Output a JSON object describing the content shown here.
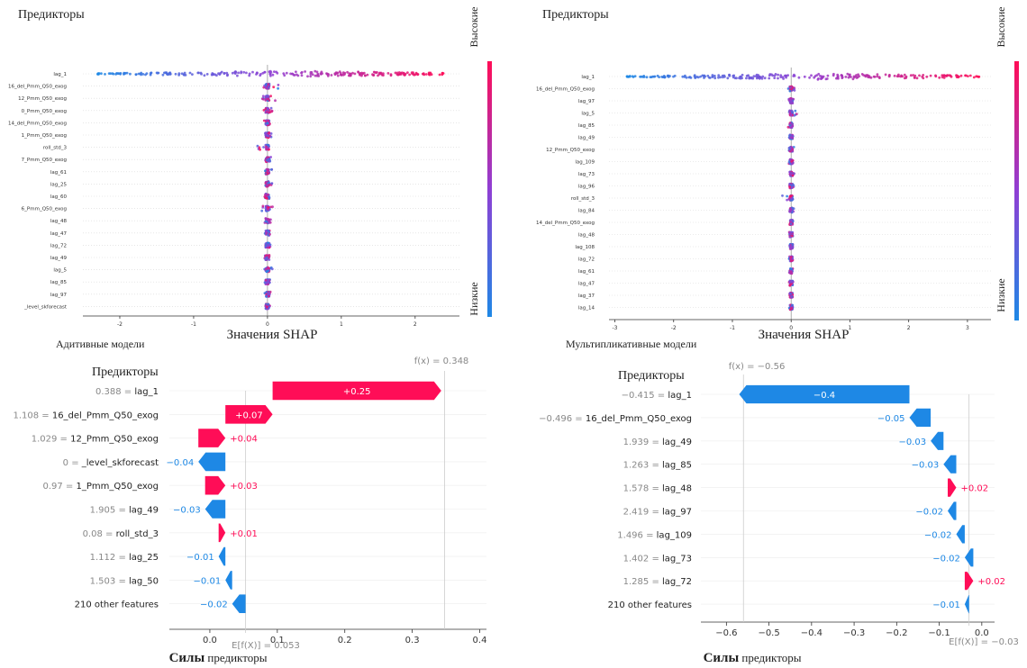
{
  "colors": {
    "pos": "#ff0d57",
    "neg": "#1e88e5",
    "violet": "#8f3fd4",
    "grid": "#e6e6e6",
    "axis": "#333333",
    "label_gray": "#888888"
  },
  "chart_data": [
    {
      "id": "beeswarm_additive",
      "type": "scatter",
      "subtype": "shap_beeswarm",
      "title": "Предикторы",
      "xlabel": "Значения SHAP",
      "colorbar": {
        "high": "Высокие",
        "low": "Низкие"
      },
      "xlim": [
        -2.5,
        2.6
      ],
      "xticks": [
        -2,
        -1,
        0,
        1,
        2
      ],
      "features": [
        {
          "name": "lag_1",
          "min": -2.3,
          "max": 2.4
        },
        {
          "name": "16_del_Pmm_Q50_exog",
          "min": -0.06,
          "max": 0.15
        },
        {
          "name": "12_Pmm_Q50_exog",
          "min": -0.08,
          "max": 0.12
        },
        {
          "name": "0_Pmm_Q50_exog",
          "min": -0.06,
          "max": 0.07
        },
        {
          "name": "14_del_Pmm_Q50_exog",
          "min": -0.05,
          "max": 0.06
        },
        {
          "name": "1_Pmm_Q50_exog",
          "min": -0.05,
          "max": 0.06
        },
        {
          "name": "roll_std_3",
          "min": -0.14,
          "max": 0.05
        },
        {
          "name": "7_Pmm_Q50_exog",
          "min": -0.04,
          "max": 0.05
        },
        {
          "name": "lag_61",
          "min": -0.04,
          "max": 0.06
        },
        {
          "name": "lag_25",
          "min": -0.05,
          "max": 0.1
        },
        {
          "name": "lag_60",
          "min": -0.04,
          "max": 0.05
        },
        {
          "name": "6_Pmm_Q50_exog",
          "min": -0.08,
          "max": 0.1
        },
        {
          "name": "lag_48",
          "min": -0.04,
          "max": 0.05
        },
        {
          "name": "lag_47",
          "min": -0.04,
          "max": 0.05
        },
        {
          "name": "lag_72",
          "min": -0.05,
          "max": 0.04
        },
        {
          "name": "lag_49",
          "min": -0.04,
          "max": 0.05
        },
        {
          "name": "lag_5",
          "min": -0.04,
          "max": 0.1
        },
        {
          "name": "lag_85",
          "min": -0.04,
          "max": 0.04
        },
        {
          "name": "lag_97",
          "min": -0.04,
          "max": 0.04
        },
        {
          "name": "_level_skforecast",
          "min": -0.03,
          "max": 0.04
        }
      ]
    },
    {
      "id": "beeswarm_multiplicative",
      "type": "scatter",
      "subtype": "shap_beeswarm",
      "title": "Предикторы",
      "xlabel": "Значения SHAP",
      "colorbar": {
        "high": "Высокие",
        "low": "Низкие"
      },
      "xlim": [
        -3.1,
        3.4
      ],
      "xticks": [
        -3,
        -2,
        -1,
        0,
        1,
        2,
        3
      ],
      "features": [
        {
          "name": "lag_1",
          "min": -2.8,
          "max": 3.2
        },
        {
          "name": "16_del_Pmm_Q50_exog",
          "min": -0.05,
          "max": 0.12
        },
        {
          "name": "lag_97",
          "min": -0.04,
          "max": 0.06
        },
        {
          "name": "lag_5",
          "min": -0.04,
          "max": 0.1
        },
        {
          "name": "lag_85",
          "min": -0.06,
          "max": 0.04
        },
        {
          "name": "lag_49",
          "min": -0.04,
          "max": 0.05
        },
        {
          "name": "12_Pmm_Q50_exog",
          "min": -0.04,
          "max": 0.05
        },
        {
          "name": "lag_109",
          "min": -0.04,
          "max": 0.05
        },
        {
          "name": "lag_73",
          "min": -0.04,
          "max": 0.05
        },
        {
          "name": "lag_96",
          "min": -0.04,
          "max": 0.05
        },
        {
          "name": "roll_std_3",
          "min": -0.15,
          "max": 0.04
        },
        {
          "name": "lag_84",
          "min": -0.04,
          "max": 0.05
        },
        {
          "name": "14_del_Pmm_Q50_exog",
          "min": -0.04,
          "max": 0.04
        },
        {
          "name": "lag_48",
          "min": -0.04,
          "max": 0.04
        },
        {
          "name": "lag_108",
          "min": -0.04,
          "max": 0.04
        },
        {
          "name": "lag_72",
          "min": -0.04,
          "max": 0.04
        },
        {
          "name": "lag_61",
          "min": -0.04,
          "max": 0.04
        },
        {
          "name": "lag_47",
          "min": -0.04,
          "max": 0.04
        },
        {
          "name": "lag_37",
          "min": -0.04,
          "max": 0.04
        },
        {
          "name": "lag_14",
          "min": -0.04,
          "max": 0.04
        }
      ]
    },
    {
      "id": "waterfall_additive",
      "type": "bar",
      "subtype": "shap_waterfall",
      "title": "Предикторы",
      "xlabel_bold": "Силы",
      "xlabel_rest": " предикторы",
      "fx_label": "f(x) = 0.348",
      "efx_label": "E[f(X)] = 0.053",
      "base_value": 0.053,
      "fx": 0.348,
      "xlim": [
        -0.06,
        0.41
      ],
      "xticks": [
        0.0,
        0.1,
        0.2,
        0.3,
        0.4
      ],
      "rows": [
        {
          "value_label": "0.388",
          "feature": "lag_1",
          "contrib": 0.25,
          "label": "+0.25"
        },
        {
          "value_label": "1.108",
          "feature": "16_del_Pmm_Q50_exog",
          "contrib": 0.07,
          "label": "+0.07"
        },
        {
          "value_label": "1.029",
          "feature": "12_Pmm_Q50_exog",
          "contrib": 0.04,
          "label": "+0.04"
        },
        {
          "value_label": "0",
          "feature": "_level_skforecast",
          "contrib": -0.04,
          "label": "−0.04"
        },
        {
          "value_label": "0.97",
          "feature": "1_Pmm_Q50_exog",
          "contrib": 0.03,
          "label": "+0.03"
        },
        {
          "value_label": "1.905",
          "feature": "lag_49",
          "contrib": -0.03,
          "label": "−0.03"
        },
        {
          "value_label": "0.08",
          "feature": "roll_std_3",
          "contrib": 0.01,
          "label": "+0.01"
        },
        {
          "value_label": "1.112",
          "feature": "lag_25",
          "contrib": -0.01,
          "label": "−0.01"
        },
        {
          "value_label": "1.503",
          "feature": "lag_50",
          "contrib": -0.01,
          "label": "−0.01"
        },
        {
          "value_label": "",
          "feature": "210 other features",
          "contrib": -0.02,
          "label": "−0.02"
        }
      ]
    },
    {
      "id": "waterfall_multiplicative",
      "type": "bar",
      "subtype": "shap_waterfall",
      "title": "Предикторы",
      "xlabel_bold": "Силы",
      "xlabel_rest": " предикторы",
      "fx_label": "f(x) = −0.56",
      "efx_label": "E[f(X)] = −0.03",
      "base_value": -0.03,
      "fx": -0.56,
      "xlim": [
        -0.66,
        0.03
      ],
      "xticks": [
        -0.6,
        -0.5,
        -0.4,
        -0.3,
        -0.2,
        -0.1,
        0.0
      ],
      "rows": [
        {
          "value_label": "−0.415",
          "feature": "lag_1",
          "contrib": -0.4,
          "label": "−0.4"
        },
        {
          "value_label": "−0.496",
          "feature": "16_del_Pmm_Q50_exog",
          "contrib": -0.05,
          "label": "−0.05"
        },
        {
          "value_label": "1.939",
          "feature": "lag_49",
          "contrib": -0.03,
          "label": "−0.03"
        },
        {
          "value_label": "1.263",
          "feature": "lag_85",
          "contrib": -0.03,
          "label": "−0.03"
        },
        {
          "value_label": "1.578",
          "feature": "lag_48",
          "contrib": 0.02,
          "label": "+0.02"
        },
        {
          "value_label": "2.419",
          "feature": "lag_97",
          "contrib": -0.02,
          "label": "−0.02"
        },
        {
          "value_label": "1.496",
          "feature": "lag_109",
          "contrib": -0.02,
          "label": "−0.02"
        },
        {
          "value_label": "1.402",
          "feature": "lag_73",
          "contrib": -0.02,
          "label": "−0.02"
        },
        {
          "value_label": "1.285",
          "feature": "lag_72",
          "contrib": 0.02,
          "label": "+0.02"
        },
        {
          "value_label": "",
          "feature": "210 other features",
          "contrib": -0.01,
          "label": "−0.01"
        }
      ]
    }
  ],
  "captions": {
    "additive": "Адитивные модели",
    "multiplicative": "Мультипликативные модели"
  }
}
